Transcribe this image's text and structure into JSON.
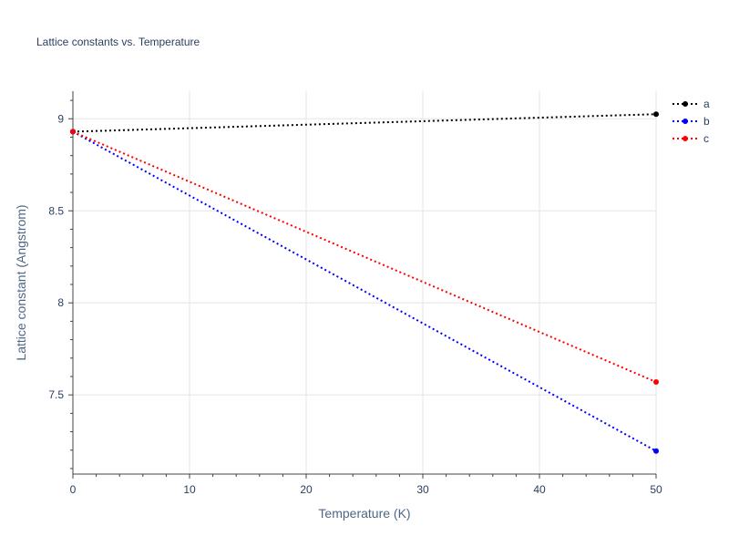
{
  "chart_data": {
    "type": "line",
    "title": "Lattice constants vs. Temperature",
    "xlabel": "Temperature (K)",
    "ylabel": "Lattice constant (Angstrom)",
    "xlim": [
      0,
      50
    ],
    "ylim": [
      7.07,
      9.15
    ],
    "x_ticks": [
      0,
      10,
      20,
      30,
      40,
      50
    ],
    "y_ticks": [
      7.5,
      8,
      8.5,
      9
    ],
    "x_tick_labels": [
      "0",
      "10",
      "20",
      "30",
      "40",
      "50"
    ],
    "y_tick_labels": [
      "7.5",
      "8",
      "8.5",
      "9"
    ],
    "grid": true,
    "legend_position": "top-right",
    "series": [
      {
        "name": "a",
        "color": "#000000",
        "x": [
          0,
          50
        ],
        "y": [
          8.93,
          9.025
        ]
      },
      {
        "name": "b",
        "color": "#0000ff",
        "x": [
          0,
          50
        ],
        "y": [
          8.93,
          7.195
        ]
      },
      {
        "name": "c",
        "color": "#ff0000",
        "x": [
          0,
          50
        ],
        "y": [
          8.93,
          7.57
        ]
      }
    ]
  }
}
